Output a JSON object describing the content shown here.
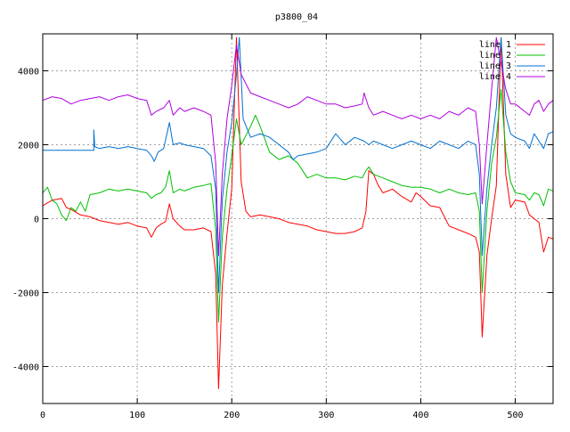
{
  "chart_data": {
    "type": "line",
    "title": "p3800_04",
    "xlabel": "",
    "ylabel": "",
    "xlim": [
      0,
      540
    ],
    "ylim": [
      -5000,
      5000
    ],
    "x_ticks": [
      0,
      100,
      200,
      300,
      400,
      500
    ],
    "y_ticks": [
      -4000,
      -2000,
      0,
      2000,
      4000
    ],
    "grid": true,
    "legend_position": "top-right",
    "series": [
      {
        "name": "line 1",
        "color": "#ff0000",
        "points": [
          [
            0,
            350
          ],
          [
            10,
            500
          ],
          [
            20,
            550
          ],
          [
            25,
            300
          ],
          [
            30,
            250
          ],
          [
            40,
            100
          ],
          [
            50,
            50
          ],
          [
            60,
            -50
          ],
          [
            70,
            -100
          ],
          [
            80,
            -150
          ],
          [
            90,
            -100
          ],
          [
            100,
            -200
          ],
          [
            110,
            -250
          ],
          [
            115,
            -500
          ],
          [
            120,
            -250
          ],
          [
            125,
            -150
          ],
          [
            130,
            -80
          ],
          [
            134,
            400
          ],
          [
            138,
            0
          ],
          [
            145,
            -200
          ],
          [
            150,
            -300
          ],
          [
            160,
            -300
          ],
          [
            170,
            -250
          ],
          [
            178,
            -350
          ],
          [
            183,
            -1500
          ],
          [
            186,
            -4600
          ],
          [
            190,
            -1800
          ],
          [
            195,
            -400
          ],
          [
            200,
            800
          ],
          [
            205,
            4900
          ],
          [
            210,
            1000
          ],
          [
            215,
            200
          ],
          [
            220,
            50
          ],
          [
            230,
            100
          ],
          [
            240,
            50
          ],
          [
            250,
            0
          ],
          [
            260,
            -100
          ],
          [
            270,
            -150
          ],
          [
            280,
            -200
          ],
          [
            290,
            -300
          ],
          [
            300,
            -350
          ],
          [
            310,
            -400
          ],
          [
            320,
            -400
          ],
          [
            330,
            -350
          ],
          [
            338,
            -250
          ],
          [
            342,
            200
          ],
          [
            345,
            1300
          ],
          [
            350,
            1200
          ],
          [
            355,
            900
          ],
          [
            360,
            700
          ],
          [
            370,
            800
          ],
          [
            380,
            600
          ],
          [
            390,
            450
          ],
          [
            395,
            700
          ],
          [
            400,
            600
          ],
          [
            410,
            350
          ],
          [
            420,
            300
          ],
          [
            430,
            -200
          ],
          [
            440,
            -300
          ],
          [
            450,
            -400
          ],
          [
            458,
            -500
          ],
          [
            462,
            -900
          ],
          [
            465,
            -3200
          ],
          [
            470,
            -1000
          ],
          [
            475,
            0
          ],
          [
            480,
            900
          ],
          [
            485,
            4900
          ],
          [
            490,
            1200
          ],
          [
            495,
            300
          ],
          [
            500,
            500
          ],
          [
            510,
            450
          ],
          [
            515,
            100
          ],
          [
            520,
            0
          ],
          [
            525,
            -100
          ],
          [
            530,
            -900
          ],
          [
            535,
            -500
          ],
          [
            540,
            -550
          ]
        ]
      },
      {
        "name": "line 2",
        "color": "#00c000",
        "points": [
          [
            0,
            700
          ],
          [
            5,
            850
          ],
          [
            10,
            500
          ],
          [
            15,
            400
          ],
          [
            20,
            100
          ],
          [
            25,
            -50
          ],
          [
            30,
            300
          ],
          [
            35,
            200
          ],
          [
            40,
            450
          ],
          [
            45,
            200
          ],
          [
            50,
            650
          ],
          [
            60,
            700
          ],
          [
            70,
            800
          ],
          [
            80,
            750
          ],
          [
            90,
            800
          ],
          [
            100,
            750
          ],
          [
            110,
            700
          ],
          [
            115,
            550
          ],
          [
            120,
            650
          ],
          [
            125,
            700
          ],
          [
            130,
            850
          ],
          [
            134,
            1300
          ],
          [
            138,
            700
          ],
          [
            145,
            800
          ],
          [
            150,
            750
          ],
          [
            160,
            850
          ],
          [
            170,
            900
          ],
          [
            178,
            950
          ],
          [
            183,
            -300
          ],
          [
            186,
            -2800
          ],
          [
            190,
            -500
          ],
          [
            195,
            800
          ],
          [
            200,
            1700
          ],
          [
            205,
            2700
          ],
          [
            210,
            2000
          ],
          [
            220,
            2500
          ],
          [
            225,
            2800
          ],
          [
            230,
            2500
          ],
          [
            240,
            1800
          ],
          [
            250,
            1600
          ],
          [
            260,
            1700
          ],
          [
            270,
            1500
          ],
          [
            280,
            1100
          ],
          [
            290,
            1200
          ],
          [
            300,
            1100
          ],
          [
            310,
            1100
          ],
          [
            320,
            1050
          ],
          [
            330,
            1150
          ],
          [
            338,
            1100
          ],
          [
            342,
            1300
          ],
          [
            345,
            1400
          ],
          [
            350,
            1200
          ],
          [
            360,
            1100
          ],
          [
            370,
            1000
          ],
          [
            380,
            900
          ],
          [
            390,
            850
          ],
          [
            400,
            850
          ],
          [
            410,
            800
          ],
          [
            420,
            700
          ],
          [
            430,
            800
          ],
          [
            440,
            700
          ],
          [
            450,
            650
          ],
          [
            458,
            700
          ],
          [
            462,
            200
          ],
          [
            465,
            -2000
          ],
          [
            470,
            200
          ],
          [
            475,
            1500
          ],
          [
            480,
            2200
          ],
          [
            485,
            3500
          ],
          [
            490,
            1800
          ],
          [
            495,
            1000
          ],
          [
            500,
            700
          ],
          [
            510,
            650
          ],
          [
            515,
            500
          ],
          [
            520,
            700
          ],
          [
            525,
            650
          ],
          [
            530,
            350
          ],
          [
            535,
            800
          ],
          [
            540,
            750
          ]
        ]
      },
      {
        "name": "line 3",
        "color": "#0070d0",
        "points": [
          [
            0,
            1850
          ],
          [
            54,
            1850
          ],
          [
            54,
            2400
          ],
          [
            55,
            1950
          ],
          [
            60,
            1900
          ],
          [
            70,
            1950
          ],
          [
            80,
            1900
          ],
          [
            90,
            1950
          ],
          [
            100,
            1900
          ],
          [
            110,
            1850
          ],
          [
            115,
            1700
          ],
          [
            118,
            1550
          ],
          [
            122,
            1800
          ],
          [
            128,
            1900
          ],
          [
            134,
            2600
          ],
          [
            138,
            2000
          ],
          [
            145,
            2050
          ],
          [
            150,
            2000
          ],
          [
            160,
            1950
          ],
          [
            170,
            1900
          ],
          [
            178,
            1700
          ],
          [
            183,
            800
          ],
          [
            186,
            -2000
          ],
          [
            190,
            500
          ],
          [
            195,
            1800
          ],
          [
            200,
            2600
          ],
          [
            205,
            3900
          ],
          [
            208,
            4900
          ],
          [
            212,
            2700
          ],
          [
            220,
            2200
          ],
          [
            230,
            2300
          ],
          [
            240,
            2200
          ],
          [
            250,
            2000
          ],
          [
            260,
            1800
          ],
          [
            265,
            1600
          ],
          [
            270,
            1700
          ],
          [
            280,
            1750
          ],
          [
            290,
            1800
          ],
          [
            300,
            1900
          ],
          [
            310,
            2300
          ],
          [
            320,
            2000
          ],
          [
            330,
            2200
          ],
          [
            340,
            2100
          ],
          [
            345,
            2000
          ],
          [
            350,
            2100
          ],
          [
            360,
            2000
          ],
          [
            370,
            1900
          ],
          [
            380,
            2000
          ],
          [
            390,
            2100
          ],
          [
            400,
            2000
          ],
          [
            410,
            1900
          ],
          [
            420,
            2100
          ],
          [
            430,
            2000
          ],
          [
            440,
            1900
          ],
          [
            450,
            2100
          ],
          [
            458,
            2000
          ],
          [
            462,
            1200
          ],
          [
            465,
            -1000
          ],
          [
            470,
            800
          ],
          [
            475,
            2000
          ],
          [
            480,
            3000
          ],
          [
            485,
            4900
          ],
          [
            490,
            2800
          ],
          [
            495,
            2300
          ],
          [
            500,
            2200
          ],
          [
            510,
            2100
          ],
          [
            515,
            1900
          ],
          [
            520,
            2300
          ],
          [
            525,
            2100
          ],
          [
            530,
            1900
          ],
          [
            535,
            2300
          ],
          [
            540,
            2350
          ]
        ]
      },
      {
        "name": "line 4",
        "color": "#b000e0",
        "points": [
          [
            0,
            3200
          ],
          [
            10,
            3300
          ],
          [
            20,
            3250
          ],
          [
            30,
            3100
          ],
          [
            40,
            3200
          ],
          [
            50,
            3250
          ],
          [
            60,
            3300
          ],
          [
            70,
            3200
          ],
          [
            80,
            3300
          ],
          [
            90,
            3350
          ],
          [
            100,
            3250
          ],
          [
            110,
            3200
          ],
          [
            115,
            2800
          ],
          [
            120,
            2900
          ],
          [
            128,
            3000
          ],
          [
            134,
            3200
          ],
          [
            138,
            2800
          ],
          [
            145,
            3000
          ],
          [
            150,
            2900
          ],
          [
            160,
            3000
          ],
          [
            170,
            2900
          ],
          [
            178,
            2800
          ],
          [
            183,
            1500
          ],
          [
            186,
            -1000
          ],
          [
            190,
            1200
          ],
          [
            195,
            2700
          ],
          [
            200,
            3600
          ],
          [
            205,
            4700
          ],
          [
            210,
            3900
          ],
          [
            220,
            3400
          ],
          [
            230,
            3300
          ],
          [
            240,
            3200
          ],
          [
            250,
            3100
          ],
          [
            260,
            3000
          ],
          [
            270,
            3100
          ],
          [
            280,
            3300
          ],
          [
            290,
            3200
          ],
          [
            300,
            3100
          ],
          [
            310,
            3100
          ],
          [
            320,
            3000
          ],
          [
            330,
            3050
          ],
          [
            338,
            3100
          ],
          [
            340,
            3400
          ],
          [
            345,
            3000
          ],
          [
            350,
            2800
          ],
          [
            360,
            2900
          ],
          [
            370,
            2800
          ],
          [
            380,
            2700
          ],
          [
            390,
            2800
          ],
          [
            400,
            2700
          ],
          [
            410,
            2800
          ],
          [
            420,
            2700
          ],
          [
            430,
            2900
          ],
          [
            440,
            2800
          ],
          [
            450,
            3000
          ],
          [
            458,
            2900
          ],
          [
            462,
            2000
          ],
          [
            465,
            400
          ],
          [
            470,
            2000
          ],
          [
            475,
            3500
          ],
          [
            480,
            4900
          ],
          [
            485,
            4200
          ],
          [
            490,
            3500
          ],
          [
            495,
            3100
          ],
          [
            500,
            3100
          ],
          [
            510,
            2900
          ],
          [
            515,
            2800
          ],
          [
            520,
            3100
          ],
          [
            525,
            3200
          ],
          [
            530,
            2900
          ],
          [
            535,
            3100
          ],
          [
            540,
            3200
          ]
        ]
      }
    ]
  }
}
